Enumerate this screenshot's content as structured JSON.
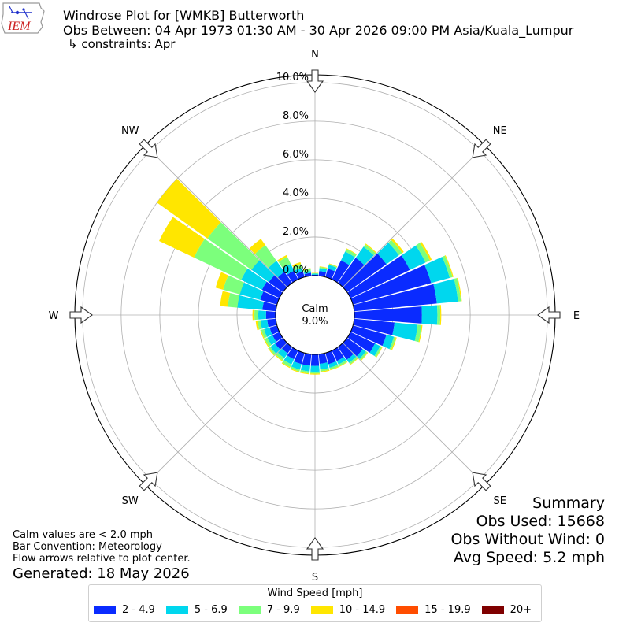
{
  "header": {
    "title": "Windrose Plot for [WMKB] Butterworth",
    "obs_between": "Obs Between: 04 Apr 1973 01:30 AM - 30 Apr 2026 09:00 PM Asia/Kuala_Lumpur",
    "constraints": "↳ constraints: Apr"
  },
  "logo": {
    "text": "IEM",
    "color": "#cc2222"
  },
  "summary": {
    "heading": "Summary",
    "obs_used": "Obs Used: 15668",
    "obs_without_wind": "Obs Without Wind: 0",
    "avg_speed": "Avg Speed: 5.2 mph"
  },
  "notes": {
    "calm": "Calm values are < 2.0 mph",
    "convention": "Bar Convention: Meteorology",
    "flow": "Flow arrows relative to plot center.",
    "generated": "Generated: 18 May 2026"
  },
  "chart_data": {
    "type": "windrose",
    "calm_label": "Calm",
    "calm_value": "9.0%",
    "calm_percent": 9.0,
    "radial_ticks": [
      "0.0%",
      "2.0%",
      "4.0%",
      "6.0%",
      "8.0%",
      "10.0%"
    ],
    "radial_tick_values": [
      0,
      2,
      4,
      6,
      8,
      10
    ],
    "rmax": 10.4,
    "directions": [
      "N",
      "NE",
      "E",
      "SE",
      "S",
      "SW",
      "W",
      "NW"
    ],
    "legend_title": "Wind Speed [mph]",
    "speed_bins": [
      {
        "label": "2 - 4.9",
        "color": "#0a2bff"
      },
      {
        "label": "5 - 6.9",
        "color": "#00d7ee"
      },
      {
        "label": "7 - 9.9",
        "color": "#7cff7c"
      },
      {
        "label": "10 - 14.9",
        "color": "#ffe600"
      },
      {
        "label": "15 - 19.9",
        "color": "#ff4d00"
      },
      {
        "label": "20+",
        "color": "#7f0000"
      }
    ],
    "sectors": [
      {
        "dir": 0,
        "values": [
          0.05,
          0.05,
          0.03,
          0.02,
          0,
          0
        ]
      },
      {
        "dir": 10,
        "values": [
          0.25,
          0.15,
          0.06,
          0.03,
          0,
          0
        ]
      },
      {
        "dir": 20,
        "values": [
          0.45,
          0.2,
          0.05,
          0.03,
          0,
          0
        ]
      },
      {
        "dir": 30,
        "values": [
          1.1,
          0.5,
          0.15,
          0.03,
          0,
          0
        ]
      },
      {
        "dir": 40,
        "values": [
          1.6,
          0.7,
          0.15,
          0.05,
          0,
          0
        ]
      },
      {
        "dir": 50,
        "values": [
          2.5,
          0.8,
          0.2,
          0.1,
          0,
          0
        ]
      },
      {
        "dir": 60,
        "values": [
          3.4,
          0.9,
          0.25,
          0.1,
          0,
          0
        ]
      },
      {
        "dir": 70,
        "values": [
          4.2,
          1.0,
          0.15,
          0.05,
          0,
          0
        ]
      },
      {
        "dir": 80,
        "values": [
          4.3,
          1.1,
          0.15,
          0.05,
          0,
          0
        ]
      },
      {
        "dir": 90,
        "values": [
          3.5,
          0.8,
          0.15,
          0.05,
          0,
          0
        ]
      },
      {
        "dir": 100,
        "values": [
          2.1,
          1.2,
          0.2,
          0.05,
          0,
          0
        ]
      },
      {
        "dir": 110,
        "values": [
          1.8,
          0.4,
          0.1,
          0.05,
          0,
          0
        ]
      },
      {
        "dir": 120,
        "values": [
          1.4,
          0.3,
          0.1,
          0.03,
          0,
          0
        ]
      },
      {
        "dir": 130,
        "values": [
          1.0,
          0.2,
          0.1,
          0.03,
          0,
          0
        ]
      },
      {
        "dir": 140,
        "values": [
          0.8,
          0.2,
          0.1,
          0.03,
          0,
          0
        ]
      },
      {
        "dir": 150,
        "values": [
          0.6,
          0.2,
          0.1,
          0.03,
          0,
          0
        ]
      },
      {
        "dir": 160,
        "values": [
          0.6,
          0.2,
          0.1,
          0.03,
          0,
          0
        ]
      },
      {
        "dir": 170,
        "values": [
          0.5,
          0.3,
          0.1,
          0.05,
          0,
          0
        ]
      },
      {
        "dir": 180,
        "values": [
          0.6,
          0.3,
          0.1,
          0.05,
          0,
          0
        ]
      },
      {
        "dir": 190,
        "values": [
          0.6,
          0.3,
          0.1,
          0.05,
          0,
          0
        ]
      },
      {
        "dir": 200,
        "values": [
          0.6,
          0.3,
          0.1,
          0.05,
          0,
          0
        ]
      },
      {
        "dir": 210,
        "values": [
          0.5,
          0.3,
          0.15,
          0.05,
          0,
          0
        ]
      },
      {
        "dir": 220,
        "values": [
          0.4,
          0.3,
          0.15,
          0.05,
          0,
          0
        ]
      },
      {
        "dir": 230,
        "values": [
          0.5,
          0.3,
          0.1,
          0.05,
          0,
          0
        ]
      },
      {
        "dir": 240,
        "values": [
          0.4,
          0.3,
          0.15,
          0.05,
          0,
          0
        ]
      },
      {
        "dir": 250,
        "values": [
          0.4,
          0.3,
          0.15,
          0.05,
          0,
          0
        ]
      },
      {
        "dir": 260,
        "values": [
          0.45,
          0.35,
          0.15,
          0.1,
          0,
          0
        ]
      },
      {
        "dir": 270,
        "values": [
          0.5,
          0.4,
          0.2,
          0.1,
          0,
          0
        ]
      },
      {
        "dir": 280,
        "values": [
          0.7,
          1.3,
          0.5,
          0.4,
          0,
          0
        ]
      },
      {
        "dir": 290,
        "values": [
          0.9,
          1.1,
          0.9,
          0.4,
          0,
          0
        ]
      },
      {
        "dir": 300,
        "values": [
          1.0,
          1.2,
          2.7,
          2.0,
          0,
          0
        ]
      },
      {
        "dir": 310,
        "values": [
          0.9,
          1.1,
          2.8,
          3.2,
          0,
          0
        ]
      },
      {
        "dir": 320,
        "values": [
          0.7,
          0.7,
          1.0,
          0.4,
          0,
          0
        ]
      },
      {
        "dir": 330,
        "values": [
          0.5,
          0.4,
          0.4,
          0.1,
          0,
          0
        ]
      },
      {
        "dir": 340,
        "values": [
          0.3,
          0.2,
          0.2,
          0.1,
          0,
          0
        ]
      },
      {
        "dir": 350,
        "values": [
          0.15,
          0.1,
          0.1,
          0.05,
          0,
          0
        ]
      }
    ]
  }
}
